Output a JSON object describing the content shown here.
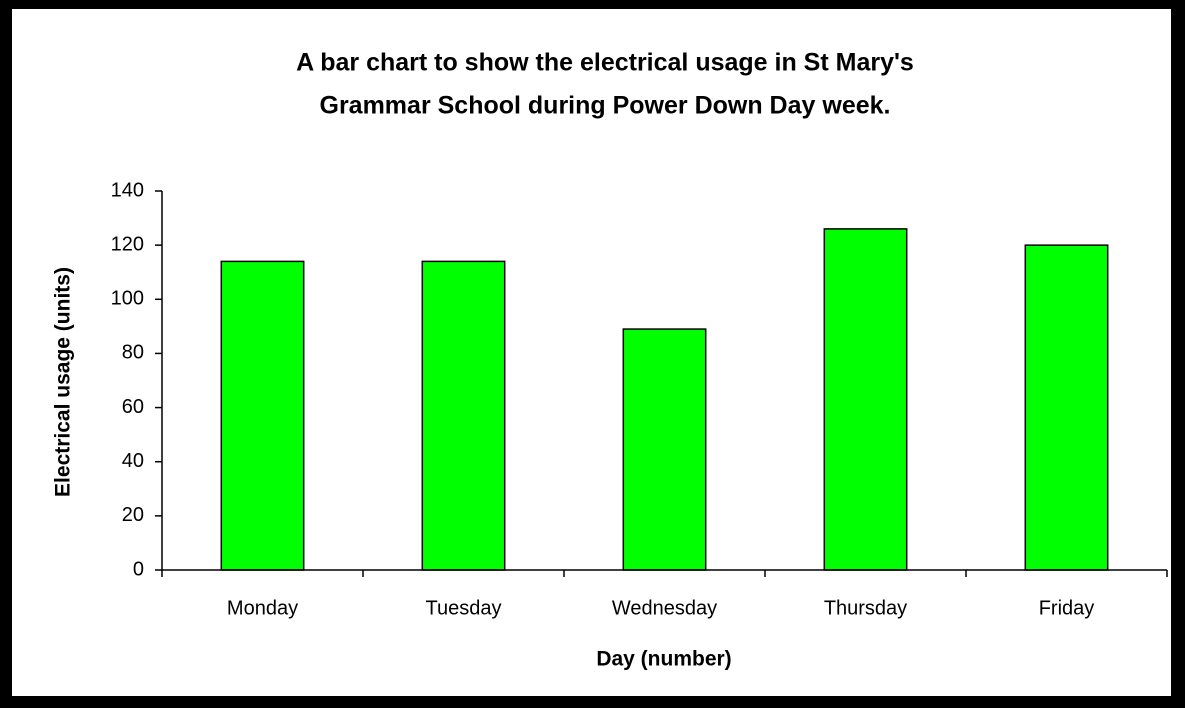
{
  "chart_data": {
    "type": "bar",
    "title": [
      "A bar chart to show the electrical usage in St Mary's",
      "Grammar School during Power Down Day week."
    ],
    "x_label": "Day (number)",
    "y_label": "Electrical usage (units)",
    "categories": [
      "Monday",
      "Tuesday",
      "Wednesday",
      "Thursday",
      "Friday"
    ],
    "values": [
      114,
      114,
      89,
      126,
      120
    ],
    "color": "#00ff00",
    "ylim": [
      0,
      140
    ],
    "yticks": [
      0,
      20,
      40,
      60,
      80,
      100,
      120,
      140
    ],
    "grid": false
  }
}
